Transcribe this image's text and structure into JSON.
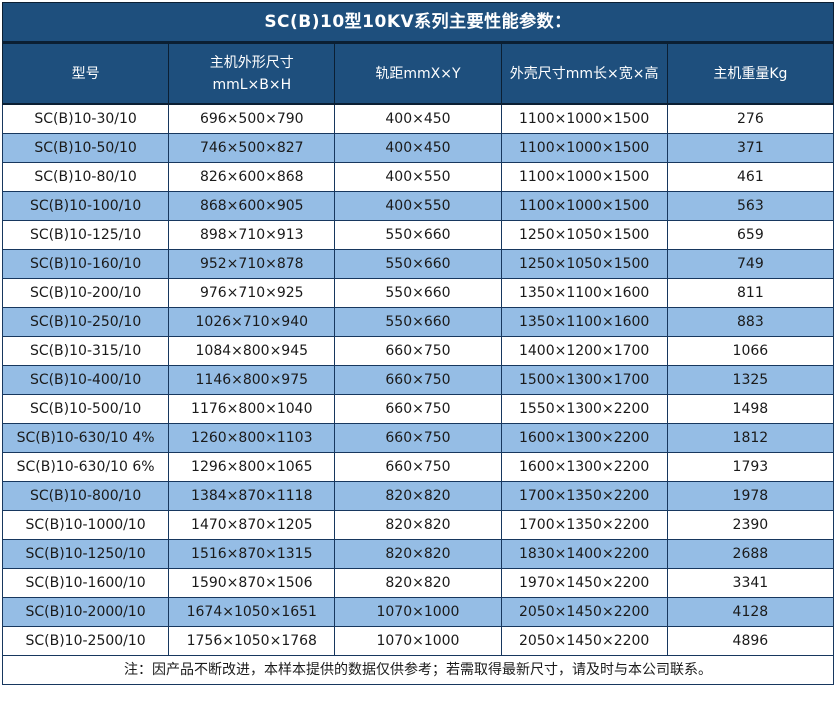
{
  "title": "SC(B)10型10KV系列主要性能参数：",
  "note": "注：因产品不断改进，本样本提供的数据仅供参考；若需取得最新尺寸，请及时与本公司联系。",
  "colors": {
    "header_bg": "#1E4F7D",
    "stripe_bg": "#95BDE5",
    "row_bg": "#FFFFFF",
    "border": "#17375E",
    "header_text": "#FFFFFF",
    "cell_text": "#1A1A1A"
  },
  "table": {
    "headers": [
      {
        "lines": [
          "型号"
        ]
      },
      {
        "lines": [
          "主机外形尺寸",
          "mmL×B×H"
        ]
      },
      {
        "lines": [
          "轨距mmX×Y"
        ]
      },
      {
        "lines": [
          "外壳尺寸mm长×宽×高"
        ]
      },
      {
        "lines": [
          "主机重量Kg"
        ]
      }
    ],
    "rows": [
      [
        "SC(B)10-30/10",
        "696×500×790",
        "400×450",
        "1100×1000×1500",
        "276"
      ],
      [
        "SC(B)10-50/10",
        "746×500×827",
        "400×450",
        "1100×1000×1500",
        "371"
      ],
      [
        "SC(B)10-80/10",
        "826×600×868",
        "400×550",
        "1100×1000×1500",
        "461"
      ],
      [
        "SC(B)10-100/10",
        "868×600×905",
        "400×550",
        "1100×1000×1500",
        "563"
      ],
      [
        "SC(B)10-125/10",
        "898×710×913",
        "550×660",
        "1250×1050×1500",
        "659"
      ],
      [
        "SC(B)10-160/10",
        "952×710×878",
        "550×660",
        "1250×1050×1500",
        "749"
      ],
      [
        "SC(B)10-200/10",
        "976×710×925",
        "550×660",
        "1350×1100×1600",
        "811"
      ],
      [
        "SC(B)10-250/10",
        "1026×710×940",
        "550×660",
        "1350×1100×1600",
        "883"
      ],
      [
        "SC(B)10-315/10",
        "1084×800×945",
        "660×750",
        "1400×1200×1700",
        "1066"
      ],
      [
        "SC(B)10-400/10",
        "1146×800×975",
        "660×750",
        "1500×1300×1700",
        "1325"
      ],
      [
        "SC(B)10-500/10",
        "1176×800×1040",
        "660×750",
        "1550×1300×2200",
        "1498"
      ],
      [
        "SC(B)10-630/10 4%",
        "1260×800×1103",
        "660×750",
        "1600×1300×2200",
        "1812"
      ],
      [
        "SC(B)10-630/10 6%",
        "1296×800×1065",
        "660×750",
        "1600×1300×2200",
        "1793"
      ],
      [
        "SC(B)10-800/10",
        "1384×870×1118",
        "820×820",
        "1700×1350×2200",
        "1978"
      ],
      [
        "SC(B)10-1000/10",
        "1470×870×1205",
        "820×820",
        "1700×1350×2200",
        "2390"
      ],
      [
        "SC(B)10-1250/10",
        "1516×870×1315",
        "820×820",
        "1830×1400×2200",
        "2688"
      ],
      [
        "SC(B)10-1600/10",
        "1590×870×1506",
        "820×820",
        "1970×1450×2200",
        "3341"
      ],
      [
        "SC(B)10-2000/10",
        "1674×1050×1651",
        "1070×1000",
        "2050×1450×2200",
        "4128"
      ],
      [
        "SC(B)10-2500/10",
        "1756×1050×1768",
        "1070×1000",
        "2050×1450×2200",
        "4896"
      ]
    ]
  }
}
